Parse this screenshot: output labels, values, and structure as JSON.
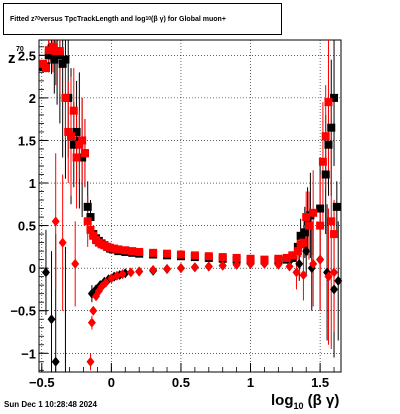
{
  "title": {
    "pre": "Fitted  z",
    "sub1": "70",
    "mid": "  versus TpcTrackLength and log",
    "sub2": "10",
    "post": " (β  γ) for Global muon+"
  },
  "datestamp": "Sun Dec  1 10:28:48 2024",
  "axes": {
    "xlabel_main": "log",
    "xlabel_sub": "10",
    "xlabel_rest": " (β γ)",
    "ylabel_main": "z",
    "ylabel_sub": "70"
  },
  "chart_data": {
    "type": "scatter",
    "xlim": [
      -0.52,
      1.65
    ],
    "ylim": [
      -1.22,
      2.68
    ],
    "xticks": [
      -0.5,
      0,
      0.5,
      1,
      1.5
    ],
    "xtick_labels": [
      "−0.5",
      "0",
      "0.5",
      "1",
      "1.5"
    ],
    "yticks": [
      -1,
      -0.5,
      0,
      0.5,
      1,
      1.5,
      2,
      2.5
    ],
    "ytick_labels": [
      "−1",
      "−0.5",
      "0",
      "0.5",
      "1",
      "1.5",
      "2",
      "2.5"
    ],
    "grid": true,
    "series": [
      {
        "marker": "square",
        "color": "#000000",
        "points": [
          {
            "x": -0.49,
            "y": 2.36,
            "err": 0.05
          },
          {
            "x": -0.47,
            "y": 2.37,
            "err": 0.05
          },
          {
            "x": -0.45,
            "y": 2.5,
            "err": 0.2
          },
          {
            "x": -0.43,
            "y": 2.58,
            "err": 0.3
          },
          {
            "x": -0.41,
            "y": 2.45,
            "err": 0.4
          },
          {
            "x": -0.39,
            "y": 2.52,
            "err": 0.6
          },
          {
            "x": -0.37,
            "y": 2.5,
            "err": 0.8
          },
          {
            "x": -0.35,
            "y": 2.4,
            "err": 1.1
          },
          {
            "x": -0.33,
            "y": 2.45,
            "err": 1.4
          },
          {
            "x": -0.31,
            "y": 2.0,
            "err": 0.7
          },
          {
            "x": -0.29,
            "y": 1.55,
            "err": 0.8
          },
          {
            "x": -0.27,
            "y": 1.45,
            "err": 0.5
          },
          {
            "x": -0.25,
            "y": 1.6,
            "err": 0.6
          },
          {
            "x": -0.23,
            "y": 1.5,
            "err": 0.8
          },
          {
            "x": -0.21,
            "y": 1.3,
            "err": 0.7
          },
          {
            "x": -0.19,
            "y": 1.35,
            "err": 0.4
          },
          {
            "x": -0.17,
            "y": 0.72,
            "err": 0.3
          },
          {
            "x": -0.15,
            "y": 0.6,
            "err": 0.2
          },
          {
            "x": -0.13,
            "y": 0.4,
            "err": 0.08
          },
          {
            "x": -0.11,
            "y": 0.35,
            "err": 0.05
          },
          {
            "x": -0.09,
            "y": 0.32,
            "err": 0.04
          },
          {
            "x": -0.07,
            "y": 0.29,
            "err": 0.03
          },
          {
            "x": -0.05,
            "y": 0.27,
            "err": 0.03
          },
          {
            "x": -0.03,
            "y": 0.25,
            "err": 0.02
          },
          {
            "x": -0.01,
            "y": 0.23,
            "err": 0.02
          },
          {
            "x": 0.01,
            "y": 0.22,
            "err": 0.02
          },
          {
            "x": 0.05,
            "y": 0.2,
            "err": 0.02
          },
          {
            "x": 0.1,
            "y": 0.19,
            "err": 0.02
          },
          {
            "x": 0.15,
            "y": 0.18,
            "err": 0.02
          },
          {
            "x": 0.2,
            "y": 0.17,
            "err": 0.02
          },
          {
            "x": 0.3,
            "y": 0.16,
            "err": 0.02
          },
          {
            "x": 0.4,
            "y": 0.15,
            "err": 0.02
          },
          {
            "x": 0.5,
            "y": 0.14,
            "err": 0.02
          },
          {
            "x": 0.6,
            "y": 0.13,
            "err": 0.02
          },
          {
            "x": 0.7,
            "y": 0.12,
            "err": 0.02
          },
          {
            "x": 0.8,
            "y": 0.11,
            "err": 0.02
          },
          {
            "x": 0.9,
            "y": 0.1,
            "err": 0.02
          },
          {
            "x": 1.0,
            "y": 0.09,
            "err": 0.02
          },
          {
            "x": 1.1,
            "y": 0.09,
            "err": 0.02
          },
          {
            "x": 1.2,
            "y": 0.09,
            "err": 0.02
          },
          {
            "x": 1.26,
            "y": 0.1,
            "err": 0.03
          },
          {
            "x": 1.3,
            "y": 0.12,
            "err": 0.05
          },
          {
            "x": 1.34,
            "y": 0.25,
            "err": 0.1
          },
          {
            "x": 1.36,
            "y": 0.38,
            "err": 0.2
          },
          {
            "x": 1.39,
            "y": 0.42,
            "err": 0.3
          },
          {
            "x": 1.41,
            "y": 0.55,
            "err": 0.4
          },
          {
            "x": 1.43,
            "y": 0.62,
            "err": 0.5
          },
          {
            "x": 1.5,
            "y": 0.7,
            "err": 0.6
          },
          {
            "x": 1.54,
            "y": 1.1,
            "err": 0.7
          },
          {
            "x": 1.56,
            "y": 1.45,
            "err": 0.6
          },
          {
            "x": 1.58,
            "y": 1.65,
            "err": 0.8
          },
          {
            "x": 1.6,
            "y": 2.0,
            "err": 0.8
          },
          {
            "x": 1.62,
            "y": 0.72,
            "err": 0.3
          }
        ]
      },
      {
        "marker": "diamond",
        "color": "#000000",
        "points": [
          {
            "x": -0.47,
            "y": -0.05,
            "err": 0.5
          },
          {
            "x": -0.43,
            "y": -0.6,
            "err": 0.8
          },
          {
            "x": -0.4,
            "y": -1.1,
            "err": 1.5
          },
          {
            "x": -0.33,
            "y": -1.25,
            "err": 1.5
          },
          {
            "x": -0.14,
            "y": -0.3,
            "err": 0.1
          },
          {
            "x": -0.11,
            "y": -0.25,
            "err": 0.04
          },
          {
            "x": -0.08,
            "y": -0.2,
            "err": 0.03
          },
          {
            "x": -0.05,
            "y": -0.16,
            "err": 0.03
          },
          {
            "x": -0.02,
            "y": -0.13,
            "err": 0.02
          },
          {
            "x": 0.02,
            "y": -0.1,
            "err": 0.02
          },
          {
            "x": 0.06,
            "y": -0.08,
            "err": 0.02
          },
          {
            "x": 0.1,
            "y": -0.06,
            "err": 0.02
          },
          {
            "x": 0.2,
            "y": -0.04,
            "err": 0.02
          },
          {
            "x": 0.3,
            "y": -0.03,
            "err": 0.02
          },
          {
            "x": 0.4,
            "y": -0.01,
            "err": 0.02
          },
          {
            "x": 0.5,
            "y": 0.0,
            "err": 0.02
          },
          {
            "x": 0.6,
            "y": 0.01,
            "err": 0.02
          },
          {
            "x": 0.7,
            "y": 0.02,
            "err": 0.02
          },
          {
            "x": 0.8,
            "y": 0.03,
            "err": 0.02
          },
          {
            "x": 0.9,
            "y": 0.04,
            "err": 0.02
          },
          {
            "x": 1.0,
            "y": 0.05,
            "err": 0.02
          },
          {
            "x": 1.1,
            "y": 0.06,
            "err": 0.02
          },
          {
            "x": 1.2,
            "y": 0.07,
            "err": 0.03
          },
          {
            "x": 1.28,
            "y": 0.08,
            "err": 0.05
          },
          {
            "x": 1.35,
            "y": 0.05,
            "err": 0.2
          },
          {
            "x": 1.4,
            "y": 0.2,
            "err": 0.3
          },
          {
            "x": 1.44,
            "y": 0.0,
            "err": 0.5
          },
          {
            "x": 1.5,
            "y": 0.1,
            "err": 0.6
          },
          {
            "x": 1.55,
            "y": -0.05,
            "err": 0.8
          },
          {
            "x": 1.6,
            "y": -0.25,
            "err": 0.8
          },
          {
            "x": 1.63,
            "y": -0.15,
            "err": 0.7
          }
        ]
      },
      {
        "marker": "square",
        "color": "#ff0000",
        "points": [
          {
            "x": -0.49,
            "y": 2.4,
            "err": 0.05
          },
          {
            "x": -0.47,
            "y": 2.35,
            "err": 0.05
          },
          {
            "x": -0.45,
            "y": 2.56,
            "err": 0.2
          },
          {
            "x": -0.42,
            "y": 2.6,
            "err": 0.3
          },
          {
            "x": -0.4,
            "y": 2.55,
            "err": 0.4
          },
          {
            "x": -0.37,
            "y": 2.55,
            "err": 0.5
          },
          {
            "x": -0.33,
            "y": 2.0,
            "err": 0.5
          },
          {
            "x": -0.31,
            "y": 1.6,
            "err": 0.6
          },
          {
            "x": -0.29,
            "y": 1.55,
            "err": 0.7
          },
          {
            "x": -0.27,
            "y": 1.85,
            "err": 0.5
          },
          {
            "x": -0.25,
            "y": 1.3,
            "err": 0.6
          },
          {
            "x": -0.23,
            "y": 1.45,
            "err": 0.4
          },
          {
            "x": -0.21,
            "y": 1.5,
            "err": 0.5
          },
          {
            "x": -0.19,
            "y": 1.35,
            "err": 0.4
          },
          {
            "x": -0.17,
            "y": 0.55,
            "err": 0.3
          },
          {
            "x": -0.15,
            "y": 0.45,
            "err": 0.1
          },
          {
            "x": -0.13,
            "y": 0.38,
            "err": 0.06
          },
          {
            "x": -0.11,
            "y": 0.33,
            "err": 0.04
          },
          {
            "x": -0.09,
            "y": 0.3,
            "err": 0.03
          },
          {
            "x": -0.07,
            "y": 0.28,
            "err": 0.03
          },
          {
            "x": -0.05,
            "y": 0.27,
            "err": 0.02
          },
          {
            "x": -0.03,
            "y": 0.25,
            "err": 0.02
          },
          {
            "x": -0.01,
            "y": 0.24,
            "err": 0.02
          },
          {
            "x": 0.02,
            "y": 0.23,
            "err": 0.02
          },
          {
            "x": 0.05,
            "y": 0.22,
            "err": 0.02
          },
          {
            "x": 0.1,
            "y": 0.21,
            "err": 0.02
          },
          {
            "x": 0.15,
            "y": 0.2,
            "err": 0.02
          },
          {
            "x": 0.2,
            "y": 0.19,
            "err": 0.02
          },
          {
            "x": 0.3,
            "y": 0.18,
            "err": 0.02
          },
          {
            "x": 0.4,
            "y": 0.17,
            "err": 0.02
          },
          {
            "x": 0.5,
            "y": 0.16,
            "err": 0.02
          },
          {
            "x": 0.6,
            "y": 0.15,
            "err": 0.02
          },
          {
            "x": 0.7,
            "y": 0.14,
            "err": 0.02
          },
          {
            "x": 0.8,
            "y": 0.13,
            "err": 0.02
          },
          {
            "x": 0.9,
            "y": 0.12,
            "err": 0.02
          },
          {
            "x": 1.0,
            "y": 0.11,
            "err": 0.02
          },
          {
            "x": 1.1,
            "y": 0.1,
            "err": 0.02
          },
          {
            "x": 1.2,
            "y": 0.11,
            "err": 0.02
          },
          {
            "x": 1.26,
            "y": 0.12,
            "err": 0.03
          },
          {
            "x": 1.3,
            "y": 0.15,
            "err": 0.05
          },
          {
            "x": 1.34,
            "y": 0.2,
            "err": 0.1
          },
          {
            "x": 1.36,
            "y": 0.28,
            "err": 0.15
          },
          {
            "x": 1.38,
            "y": 0.3,
            "err": 0.2
          },
          {
            "x": 1.4,
            "y": 0.6,
            "err": 0.3
          },
          {
            "x": 1.42,
            "y": 0.5,
            "err": 0.4
          },
          {
            "x": 1.45,
            "y": 0.65,
            "err": 0.5
          },
          {
            "x": 1.5,
            "y": 0.5,
            "err": 0.6
          },
          {
            "x": 1.52,
            "y": 1.25,
            "err": 0.7
          },
          {
            "x": 1.54,
            "y": 1.55,
            "err": 0.6
          },
          {
            "x": 1.56,
            "y": 1.95,
            "err": 0.8
          },
          {
            "x": 1.58,
            "y": 0.55,
            "err": 1.5
          },
          {
            "x": 1.6,
            "y": 0.4,
            "err": 0.4
          }
        ]
      },
      {
        "marker": "diamond",
        "color": "#ff0000",
        "points": [
          {
            "x": -0.4,
            "y": 0.55,
            "err": 0.8
          },
          {
            "x": -0.35,
            "y": 0.3,
            "err": 0.8
          },
          {
            "x": -0.26,
            "y": 0.05,
            "err": 0.5
          },
          {
            "x": -0.15,
            "y": -1.1,
            "err": 0.1
          },
          {
            "x": -0.14,
            "y": -0.64,
            "err": 0.08
          },
          {
            "x": -0.13,
            "y": -0.5,
            "err": 0.05
          },
          {
            "x": -0.11,
            "y": -0.33,
            "err": 0.04
          },
          {
            "x": -0.09,
            "y": -0.27,
            "err": 0.03
          },
          {
            "x": -0.07,
            "y": -0.22,
            "err": 0.03
          },
          {
            "x": -0.04,
            "y": -0.17,
            "err": 0.02
          },
          {
            "x": 0.0,
            "y": -0.12,
            "err": 0.02
          },
          {
            "x": 0.04,
            "y": -0.09,
            "err": 0.02
          },
          {
            "x": 0.08,
            "y": -0.07,
            "err": 0.02
          },
          {
            "x": 0.14,
            "y": -0.05,
            "err": 0.02
          },
          {
            "x": 0.2,
            "y": -0.04,
            "err": 0.02
          },
          {
            "x": 0.3,
            "y": -0.02,
            "err": 0.02
          },
          {
            "x": 0.4,
            "y": -0.01,
            "err": 0.02
          },
          {
            "x": 0.5,
            "y": 0.0,
            "err": 0.02
          },
          {
            "x": 0.6,
            "y": 0.01,
            "err": 0.02
          },
          {
            "x": 0.7,
            "y": 0.02,
            "err": 0.02
          },
          {
            "x": 0.8,
            "y": 0.03,
            "err": 0.02
          },
          {
            "x": 0.9,
            "y": 0.04,
            "err": 0.02
          },
          {
            "x": 1.0,
            "y": 0.05,
            "err": 0.02
          },
          {
            "x": 1.1,
            "y": 0.05,
            "err": 0.02
          },
          {
            "x": 1.2,
            "y": 0.04,
            "err": 0.03
          },
          {
            "x": 1.28,
            "y": 0.02,
            "err": 0.05
          },
          {
            "x": 1.33,
            "y": -0.05,
            "err": 0.2
          },
          {
            "x": 1.38,
            "y": -0.08,
            "err": 0.3
          },
          {
            "x": 1.45,
            "y": 0.05,
            "err": 0.5
          },
          {
            "x": 1.5,
            "y": 0.1,
            "err": 0.6
          },
          {
            "x": 1.56,
            "y": -0.1,
            "err": 0.8
          },
          {
            "x": 1.6,
            "y": -0.05,
            "err": 0.7
          }
        ]
      }
    ]
  }
}
